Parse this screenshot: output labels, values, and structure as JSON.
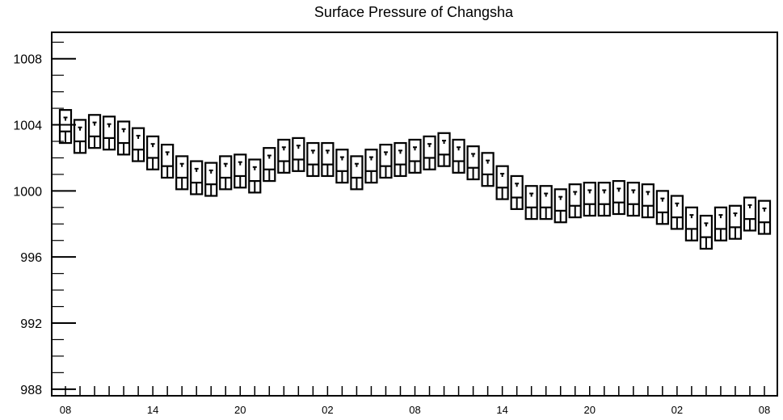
{
  "chart_data": {
    "type": "boxplot",
    "title": "Surface Pressure of Changsha",
    "xlabel": "",
    "ylabel": "",
    "ylim": [
      987.6,
      1009.6
    ],
    "yticks": [
      988,
      992,
      996,
      1000,
      1004,
      1008
    ],
    "xtick_labels": [
      "08",
      "14",
      "20",
      "02",
      "08",
      "14",
      "20",
      "02",
      "08"
    ],
    "xtick_positions": [
      0,
      6,
      12,
      18,
      24,
      30,
      36,
      42,
      48
    ],
    "grid": false,
    "series": [
      {
        "x": 0,
        "min": 1002.9,
        "q1": 1002.9,
        "median": 1003.6,
        "q3": 1004.9,
        "max": 1004.9
      },
      {
        "x": 1,
        "min": 1002.3,
        "q1": 1002.3,
        "median": 1003.0,
        "q3": 1004.3,
        "max": 1004.3
      },
      {
        "x": 2,
        "min": 1002.6,
        "q1": 1002.6,
        "median": 1003.3,
        "q3": 1004.6,
        "max": 1004.6
      },
      {
        "x": 3,
        "min": 1002.5,
        "q1": 1002.5,
        "median": 1003.2,
        "q3": 1004.5,
        "max": 1004.5
      },
      {
        "x": 4,
        "min": 1002.2,
        "q1": 1002.2,
        "median": 1002.9,
        "q3": 1004.2,
        "max": 1004.2
      },
      {
        "x": 5,
        "min": 1001.8,
        "q1": 1001.8,
        "median": 1002.5,
        "q3": 1003.8,
        "max": 1003.8
      },
      {
        "x": 6,
        "min": 1001.3,
        "q1": 1001.3,
        "median": 1002.0,
        "q3": 1003.3,
        "max": 1003.3
      },
      {
        "x": 7,
        "min": 1000.8,
        "q1": 1000.8,
        "median": 1001.5,
        "q3": 1002.8,
        "max": 1002.8
      },
      {
        "x": 8,
        "min": 1000.1,
        "q1": 1000.1,
        "median": 1000.8,
        "q3": 1002.1,
        "max": 1002.1
      },
      {
        "x": 9,
        "min": 999.8,
        "q1": 999.8,
        "median": 1000.5,
        "q3": 1001.8,
        "max": 1001.8
      },
      {
        "x": 10,
        "min": 999.7,
        "q1": 999.7,
        "median": 1000.4,
        "q3": 1001.7,
        "max": 1001.7
      },
      {
        "x": 11,
        "min": 1000.1,
        "q1": 1000.1,
        "median": 1000.8,
        "q3": 1002.1,
        "max": 1002.1
      },
      {
        "x": 12,
        "min": 1000.2,
        "q1": 1000.2,
        "median": 1000.9,
        "q3": 1002.2,
        "max": 1002.2
      },
      {
        "x": 13,
        "min": 999.9,
        "q1": 999.9,
        "median": 1000.6,
        "q3": 1001.9,
        "max": 1001.9
      },
      {
        "x": 14,
        "min": 1000.6,
        "q1": 1000.6,
        "median": 1001.3,
        "q3": 1002.6,
        "max": 1002.6
      },
      {
        "x": 15,
        "min": 1001.1,
        "q1": 1001.1,
        "median": 1001.8,
        "q3": 1003.1,
        "max": 1003.1
      },
      {
        "x": 16,
        "min": 1001.2,
        "q1": 1001.2,
        "median": 1001.9,
        "q3": 1003.2,
        "max": 1003.2
      },
      {
        "x": 17,
        "min": 1000.9,
        "q1": 1000.9,
        "median": 1001.6,
        "q3": 1002.9,
        "max": 1002.9
      },
      {
        "x": 18,
        "min": 1000.9,
        "q1": 1000.9,
        "median": 1001.6,
        "q3": 1002.9,
        "max": 1002.9
      },
      {
        "x": 19,
        "min": 1000.5,
        "q1": 1000.5,
        "median": 1001.2,
        "q3": 1002.5,
        "max": 1002.5
      },
      {
        "x": 20,
        "min": 1000.1,
        "q1": 1000.1,
        "median": 1000.8,
        "q3": 1002.1,
        "max": 1002.1
      },
      {
        "x": 21,
        "min": 1000.5,
        "q1": 1000.5,
        "median": 1001.2,
        "q3": 1002.5,
        "max": 1002.5
      },
      {
        "x": 22,
        "min": 1000.8,
        "q1": 1000.8,
        "median": 1001.5,
        "q3": 1002.8,
        "max": 1002.8
      },
      {
        "x": 23,
        "min": 1000.9,
        "q1": 1000.9,
        "median": 1001.6,
        "q3": 1002.9,
        "max": 1002.9
      },
      {
        "x": 24,
        "min": 1001.1,
        "q1": 1001.1,
        "median": 1001.8,
        "q3": 1003.1,
        "max": 1003.1
      },
      {
        "x": 25,
        "min": 1001.3,
        "q1": 1001.3,
        "median": 1002.0,
        "q3": 1003.3,
        "max": 1003.3
      },
      {
        "x": 26,
        "min": 1001.5,
        "q1": 1001.5,
        "median": 1002.2,
        "q3": 1003.5,
        "max": 1003.5
      },
      {
        "x": 27,
        "min": 1001.1,
        "q1": 1001.1,
        "median": 1001.8,
        "q3": 1003.1,
        "max": 1003.1
      },
      {
        "x": 28,
        "min": 1000.7,
        "q1": 1000.7,
        "median": 1001.4,
        "q3": 1002.7,
        "max": 1002.7
      },
      {
        "x": 29,
        "min": 1000.3,
        "q1": 1000.3,
        "median": 1001.0,
        "q3": 1002.3,
        "max": 1002.3
      },
      {
        "x": 30,
        "min": 999.5,
        "q1": 999.5,
        "median": 1000.2,
        "q3": 1001.5,
        "max": 1001.5
      },
      {
        "x": 31,
        "min": 998.9,
        "q1": 998.9,
        "median": 999.6,
        "q3": 1000.9,
        "max": 1000.9
      },
      {
        "x": 32,
        "min": 998.3,
        "q1": 998.3,
        "median": 999.0,
        "q3": 1000.3,
        "max": 1000.3
      },
      {
        "x": 33,
        "min": 998.3,
        "q1": 998.3,
        "median": 999.0,
        "q3": 1000.3,
        "max": 1000.3
      },
      {
        "x": 34,
        "min": 998.1,
        "q1": 998.1,
        "median": 998.8,
        "q3": 1000.1,
        "max": 1000.1
      },
      {
        "x": 35,
        "min": 998.4,
        "q1": 998.4,
        "median": 999.1,
        "q3": 1000.4,
        "max": 1000.4
      },
      {
        "x": 36,
        "min": 998.5,
        "q1": 998.5,
        "median": 999.2,
        "q3": 1000.5,
        "max": 1000.5
      },
      {
        "x": 37,
        "min": 998.5,
        "q1": 998.5,
        "median": 999.2,
        "q3": 1000.5,
        "max": 1000.5
      },
      {
        "x": 38,
        "min": 998.6,
        "q1": 998.6,
        "median": 999.3,
        "q3": 1000.6,
        "max": 1000.6
      },
      {
        "x": 39,
        "min": 998.5,
        "q1": 998.5,
        "median": 999.2,
        "q3": 1000.5,
        "max": 1000.5
      },
      {
        "x": 40,
        "min": 998.4,
        "q1": 998.4,
        "median": 999.1,
        "q3": 1000.4,
        "max": 1000.4
      },
      {
        "x": 41,
        "min": 998.0,
        "q1": 998.0,
        "median": 998.7,
        "q3": 1000.0,
        "max": 1000.0
      },
      {
        "x": 42,
        "min": 997.7,
        "q1": 997.7,
        "median": 998.4,
        "q3": 999.7,
        "max": 999.7
      },
      {
        "x": 43,
        "min": 997.0,
        "q1": 997.0,
        "median": 997.7,
        "q3": 999.0,
        "max": 999.0
      },
      {
        "x": 44,
        "min": 996.5,
        "q1": 996.5,
        "median": 997.2,
        "q3": 998.5,
        "max": 998.5
      },
      {
        "x": 45,
        "min": 997.0,
        "q1": 997.0,
        "median": 997.7,
        "q3": 999.0,
        "max": 999.0
      },
      {
        "x": 46,
        "min": 997.1,
        "q1": 997.1,
        "median": 997.8,
        "q3": 999.1,
        "max": 999.1
      },
      {
        "x": 47,
        "min": 997.6,
        "q1": 997.6,
        "median": 998.3,
        "q3": 999.6,
        "max": 999.6
      },
      {
        "x": 48,
        "min": 997.4,
        "q1": 997.4,
        "median": 998.1,
        "q3": 999.4,
        "max": 999.4
      }
    ]
  }
}
